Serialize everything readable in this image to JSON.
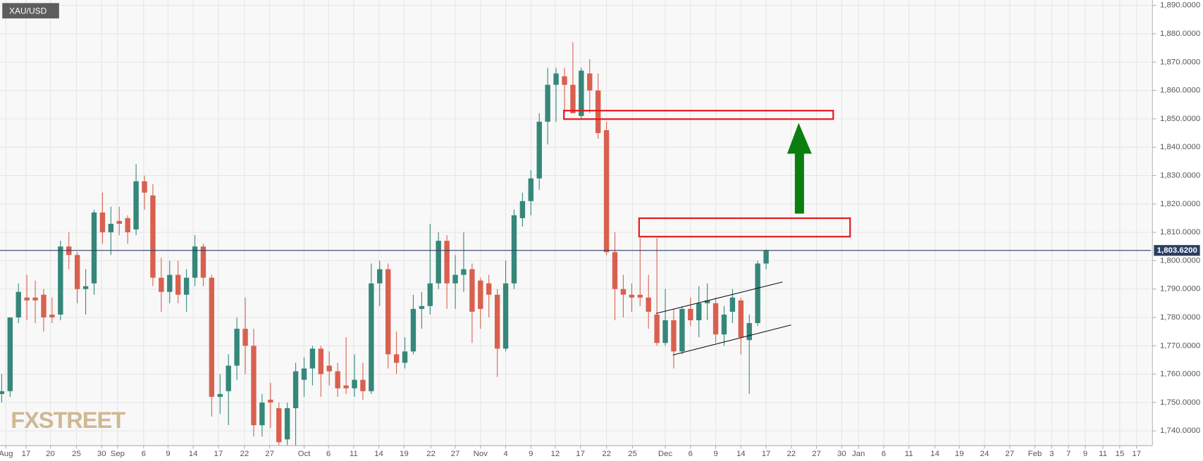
{
  "chart_data": {
    "type": "candlestick",
    "title": "XAU/USD",
    "watermark": "FXSTREET",
    "up_color": "#35877a",
    "down_color": "#d9604f",
    "grid": true,
    "open": [
      1753,
      1754,
      1780,
      1787,
      1787,
      1788,
      1781,
      1781,
      1805,
      1802,
      1790,
      1792,
      1817,
      1810,
      1814,
      1815,
      1811,
      1828,
      1823,
      1794,
      1789,
      1795,
      1788,
      1794,
      1805,
      1794,
      1752,
      1754,
      1763,
      1776,
      1770,
      1742,
      1751,
      1748,
      1737,
      1748,
      1758,
      1762,
      1769,
      1763,
      1761,
      1756,
      1755,
      1758,
      1754,
      1792,
      1797,
      1767,
      1764,
      1768,
      1783,
      1784,
      1792,
      1807,
      1792,
      1795,
      1797,
      1793,
      1792,
      1788,
      1769,
      1792,
      1815,
      1821,
      1829,
      1849,
      1862,
      1865,
      1862,
      1851,
      1866,
      1860,
      1846,
      1803,
      1790,
      1788,
      1788,
      1787,
      1781,
      1771,
      1779,
      1768,
      1783,
      1779,
      1785,
      1785,
      1774,
      1782,
      1786,
      1772,
      1778,
      1799
    ],
    "high": [
      1760,
      1780,
      1792,
      1795,
      1793,
      1790,
      1787,
      1807,
      1810,
      1803,
      1797,
      1818,
      1824,
      1819,
      1819,
      1816,
      1834,
      1830,
      1827,
      1801,
      1800,
      1800,
      1797,
      1809,
      1806,
      1795,
      1760,
      1767,
      1780,
      1787,
      1776,
      1753,
      1757,
      1750,
      1750,
      1764,
      1766,
      1770,
      1770,
      1768,
      1764,
      1773,
      1767,
      1764,
      1799,
      1800,
      1799,
      1775,
      1773,
      1788,
      1789,
      1813,
      1810,
      1809,
      1802,
      1810,
      1799,
      1794,
      1795,
      1790,
      1800,
      1818,
      1824,
      1832,
      1852,
      1868,
      1868,
      1868,
      1877,
      1868,
      1871,
      1866,
      1849,
      1810,
      1795,
      1792,
      1808,
      1795,
      1808,
      1790,
      1783,
      1784,
      1787,
      1791,
      1792,
      1787,
      1784,
      1790,
      1787,
      1781,
      1800,
      1804
    ],
    "low": [
      1750,
      1752,
      1778,
      1779,
      1778,
      1775,
      1778,
      1779,
      1797,
      1785,
      1781,
      1788,
      1806,
      1802,
      1809,
      1806,
      1809,
      1818,
      1791,
      1782,
      1785,
      1785,
      1782,
      1791,
      1791,
      1745,
      1746,
      1742,
      1758,
      1760,
      1738,
      1738,
      1741,
      1735,
      1735,
      1735,
      1752,
      1756,
      1752,
      1756,
      1752,
      1753,
      1752,
      1751,
      1753,
      1784,
      1762,
      1760,
      1762,
      1767,
      1776,
      1781,
      1790,
      1783,
      1783,
      1789,
      1771,
      1776,
      1780,
      1759,
      1768,
      1790,
      1812,
      1816,
      1825,
      1841,
      1849,
      1852,
      1852,
      1850,
      1852,
      1843,
      1802,
      1779,
      1780,
      1782,
      1784,
      1776,
      1770,
      1770,
      1762,
      1767,
      1777,
      1773,
      1779,
      1771,
      1770,
      1778,
      1767,
      1753,
      1777,
      1797
    ],
    "close": [
      1754,
      1780,
      1789,
      1786,
      1786,
      1780,
      1780,
      1805,
      1802,
      1790,
      1791,
      1817,
      1810,
      1813,
      1813,
      1810,
      1828,
      1824,
      1794,
      1789,
      1795,
      1788,
      1794,
      1805,
      1794,
      1752,
      1753,
      1763,
      1776,
      1770,
      1742,
      1750,
      1750,
      1736,
      1748,
      1761,
      1762,
      1769,
      1760,
      1761,
      1755,
      1755,
      1758,
      1754,
      1792,
      1797,
      1767,
      1764,
      1768,
      1783,
      1784,
      1792,
      1807,
      1792,
      1795,
      1797,
      1782,
      1783,
      1788,
      1769,
      1792,
      1816,
      1821,
      1829,
      1849,
      1862,
      1866,
      1862,
      1852,
      1867,
      1860,
      1845,
      1803,
      1790,
      1788,
      1787,
      1787,
      1782,
      1771,
      1779,
      1768,
      1783,
      1779,
      1785,
      1786,
      1774,
      1781,
      1787,
      1773,
      1778,
      1799,
      1803.62
    ],
    "last_price": {
      "value": 1803.62,
      "label": "1,803.6200"
    },
    "xlim": [
      -0.2,
      136.8
    ],
    "xticks": [
      {
        "value": 0.5,
        "label": "Aug"
      },
      {
        "value": 2.9,
        "label": "17"
      },
      {
        "value": 5.8,
        "label": "20"
      },
      {
        "value": 8.9,
        "label": "25"
      },
      {
        "value": 11.9,
        "label": "30"
      },
      {
        "value": 13.8,
        "label": "Sep"
      },
      {
        "value": 16.9,
        "label": "6"
      },
      {
        "value": 19.8,
        "label": "9"
      },
      {
        "value": 22.8,
        "label": "14"
      },
      {
        "value": 25.8,
        "label": "17"
      },
      {
        "value": 28.9,
        "label": "22"
      },
      {
        "value": 31.9,
        "label": "27"
      },
      {
        "value": 36.0,
        "label": "Oct"
      },
      {
        "value": 38.9,
        "label": "6"
      },
      {
        "value": 41.9,
        "label": "11"
      },
      {
        "value": 44.9,
        "label": "14"
      },
      {
        "value": 47.9,
        "label": "19"
      },
      {
        "value": 51.1,
        "label": "22"
      },
      {
        "value": 54.0,
        "label": "27"
      },
      {
        "value": 57.0,
        "label": "Nov"
      },
      {
        "value": 60.0,
        "label": "4"
      },
      {
        "value": 63.0,
        "label": "9"
      },
      {
        "value": 65.9,
        "label": "12"
      },
      {
        "value": 68.9,
        "label": "17"
      },
      {
        "value": 72.0,
        "label": "22"
      },
      {
        "value": 75.1,
        "label": "25"
      },
      {
        "value": 79.0,
        "label": "Dec"
      },
      {
        "value": 82.0,
        "label": "6"
      },
      {
        "value": 85.0,
        "label": "9"
      },
      {
        "value": 88.0,
        "label": "14"
      },
      {
        "value": 91.0,
        "label": "17"
      },
      {
        "value": 94.0,
        "label": "22"
      },
      {
        "value": 97.0,
        "label": "27"
      },
      {
        "value": 100.0,
        "label": "30"
      },
      {
        "value": 102.0,
        "label": "Jan"
      },
      {
        "value": 105.0,
        "label": "6"
      },
      {
        "value": 108.0,
        "label": "11"
      },
      {
        "value": 111.1,
        "label": "14"
      },
      {
        "value": 114.0,
        "label": "19"
      },
      {
        "value": 117.0,
        "label": "24"
      },
      {
        "value": 120.0,
        "label": "27"
      },
      {
        "value": 123.0,
        "label": "Feb"
      },
      {
        "value": 125.0,
        "label": "3"
      },
      {
        "value": 127.0,
        "label": "7"
      },
      {
        "value": 129.0,
        "label": "9"
      },
      {
        "value": 131.1,
        "label": "11"
      },
      {
        "value": 133.1,
        "label": "15"
      },
      {
        "value": 135.1,
        "label": "17"
      }
    ],
    "ylim": [
      1734.8,
      1891.9
    ],
    "yticks": [
      {
        "value": 1740,
        "label": "1,740.0000"
      },
      {
        "value": 1750,
        "label": "1,750.0000"
      },
      {
        "value": 1760,
        "label": "1,760.0000"
      },
      {
        "value": 1770,
        "label": "1,770.0000"
      },
      {
        "value": 1780,
        "label": "1,780.0000"
      },
      {
        "value": 1790,
        "label": "1,790.0000"
      },
      {
        "value": 1800,
        "label": "1,800.0000"
      },
      {
        "value": 1810,
        "label": "1,810.0000"
      },
      {
        "value": 1820,
        "label": "1,820.0000"
      },
      {
        "value": 1830,
        "label": "1,830.0000"
      },
      {
        "value": 1840,
        "label": "1,840.0000"
      },
      {
        "value": 1850,
        "label": "1,850.0000"
      },
      {
        "value": 1860,
        "label": "1,860.0000"
      },
      {
        "value": 1870,
        "label": "1,870.0000"
      },
      {
        "value": 1880,
        "label": "1,880.0000"
      },
      {
        "value": 1890,
        "label": "1,890.0000"
      }
    ]
  }
}
